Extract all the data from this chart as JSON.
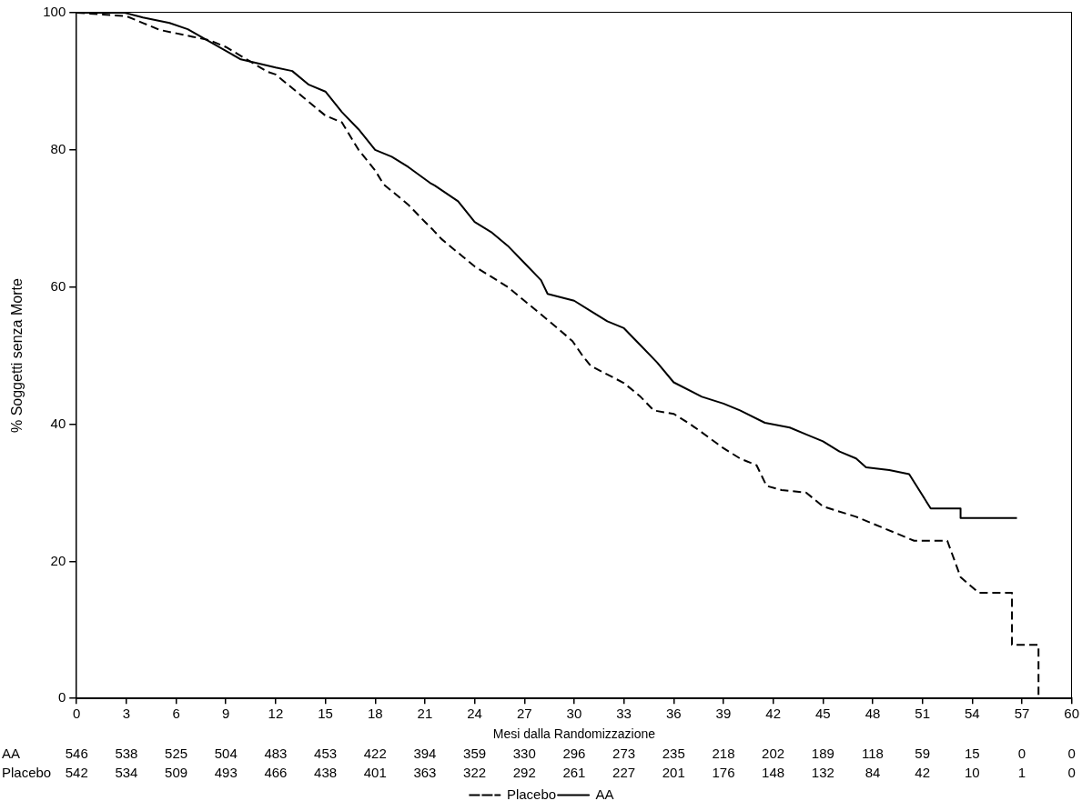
{
  "chart_data": {
    "type": "line",
    "xlabel": "Mesi dalla Randomizzazione",
    "ylabel": "% Soggetti senza Morte",
    "xlim": [
      0,
      60
    ],
    "xticks": [
      0,
      3,
      6,
      9,
      12,
      15,
      18,
      21,
      24,
      27,
      30,
      33,
      36,
      39,
      42,
      45,
      48,
      51,
      54,
      57,
      60
    ],
    "ylim": [
      0,
      100
    ],
    "yticks": [
      0,
      20,
      40,
      60,
      80,
      100
    ],
    "grid": false,
    "legend": "bottom",
    "marker": "none",
    "series": [
      {
        "name": "Placebo",
        "color": "#000000",
        "line_style": "dashed",
        "x": [
          0,
          3,
          4,
          5,
          6,
          7,
          8,
          9,
          11.5,
          12,
          15,
          16,
          17,
          18,
          18.5,
          19,
          20,
          21,
          21.5,
          22,
          23,
          24,
          24.8,
          26,
          27,
          28,
          29,
          29.9,
          30.5,
          31,
          33,
          34,
          34.8,
          36,
          37,
          37.7,
          39,
          40,
          41,
          41.6,
          42.5,
          44,
          45,
          47,
          48,
          50.5,
          52.5,
          53.3,
          54.4,
          56.4,
          56.4,
          58,
          58
        ],
        "values": [
          100,
          99.5,
          98.5,
          97.5,
          97,
          96.5,
          96,
          95,
          91.4,
          91,
          85,
          84,
          80,
          77,
          75,
          74,
          72,
          69.5,
          68.3,
          67,
          65,
          63,
          61.8,
          60,
          58,
          56,
          54,
          52.1,
          50,
          48.5,
          46,
          44,
          42,
          41.5,
          40,
          38.8,
          36.5,
          35,
          34,
          31,
          30.4,
          30,
          28,
          26.5,
          25.5,
          23,
          23,
          17.7,
          15.4,
          15.4,
          7.8,
          7.8,
          0
        ]
      },
      {
        "name": "AA",
        "color": "#000000",
        "line_style": "solid",
        "x": [
          0,
          2.9,
          4,
          5.6,
          6.7,
          9.9,
          12,
          13,
          14,
          15,
          16,
          17,
          18,
          19,
          20,
          21.3,
          21.6,
          23,
          24,
          25,
          26,
          27,
          28,
          28.4,
          30,
          31,
          32,
          33,
          34,
          35,
          36,
          37.7,
          39,
          40,
          41.5,
          43,
          44,
          45,
          46,
          47,
          47.6,
          49,
          50.2,
          51.5,
          53.3,
          53.3,
          56.7
        ],
        "values": [
          100,
          100,
          99.3,
          98.5,
          97.6,
          93.2,
          92,
          91.5,
          89.5,
          88.5,
          85.5,
          83,
          80,
          79,
          77.5,
          75.2,
          74.8,
          72.5,
          69.5,
          68,
          66,
          63.5,
          61,
          59,
          58,
          56.5,
          55,
          54,
          51.5,
          49,
          46.1,
          44,
          43,
          42,
          40.2,
          39.5,
          38.5,
          37.5,
          36,
          35,
          33.7,
          33.3,
          32.7,
          27.7,
          27.7,
          26.3,
          26.3
        ]
      }
    ],
    "annotations": [
      "AA 546 538 525 504 483 453 422 394 359 330 296 273 235 218 202 189 118 59 15 0 0",
      "Placebo 542 534 509 493 466 438 401 363 322 292 261 227 201 176 148 132 84 42 10 1 0"
    ]
  }
}
